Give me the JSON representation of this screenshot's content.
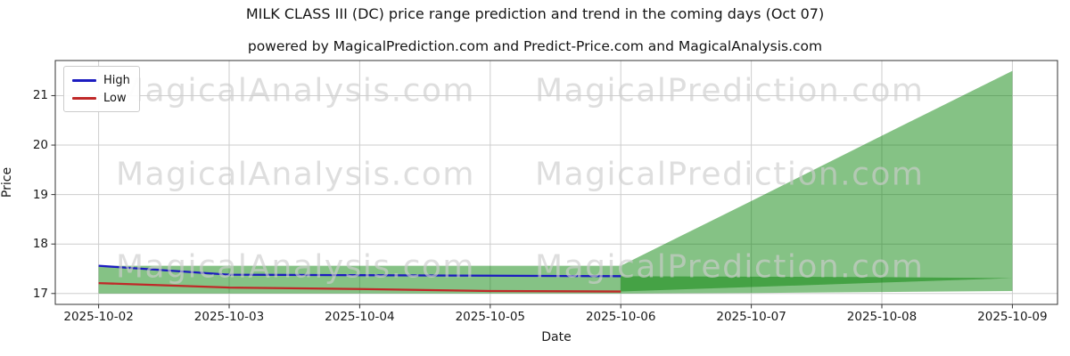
{
  "title": "MILK CLASS III (DC) price range prediction and trend in the coming days (Oct 07)",
  "subtitle": "powered by MagicalPrediction.com and Predict-Price.com and MagicalAnalysis.com",
  "watermarks": {
    "analysis": "MagicalAnalysis.com",
    "prediction": "MagicalPrediction.com"
  },
  "legend": [
    {
      "label": "High",
      "color": "#1c1cc0"
    },
    {
      "label": "Low",
      "color": "#c02828"
    }
  ],
  "axes": {
    "x_label": "Date",
    "y_label": "Price",
    "x_ticks": [
      "2025-10-02",
      "2025-10-03",
      "2025-10-04",
      "2025-10-05",
      "2025-10-06",
      "2025-10-07",
      "2025-10-08",
      "2025-10-09"
    ],
    "y_ticks": [
      "17",
      "18",
      "19",
      "20",
      "21"
    ]
  },
  "chart_data": {
    "type": "line",
    "title": "MILK CLASS III (DC) price range prediction and trend in the coming days (Oct 07)",
    "xlabel": "Date",
    "ylabel": "Price",
    "x": [
      "2025-10-02",
      "2025-10-03",
      "2025-10-04",
      "2025-10-05",
      "2025-10-06",
      "2025-10-07",
      "2025-10-08",
      "2025-10-09"
    ],
    "y_ticks": [
      17,
      18,
      19,
      20,
      21
    ],
    "ylim": [
      16.78,
      21.71
    ],
    "grid": true,
    "legend_position": "upper left",
    "series": [
      {
        "name": "High",
        "color": "#1c1cc0",
        "x_idx": [
          0,
          1,
          2,
          3,
          4
        ],
        "values": [
          17.56,
          17.38,
          17.37,
          17.36,
          17.35
        ]
      },
      {
        "name": "Low",
        "color": "#c02828",
        "x_idx": [
          0,
          1,
          2,
          3,
          4
        ],
        "values": [
          17.21,
          17.12,
          17.09,
          17.05,
          17.04
        ]
      }
    ],
    "bands": [
      {
        "name": "historical-range",
        "x_idx": [
          0,
          4
        ],
        "upper": [
          17.56,
          17.56
        ],
        "lower": [
          17.0,
          17.0
        ]
      },
      {
        "name": "forecast-trend-range",
        "x_idx": [
          4,
          5,
          6,
          7
        ],
        "upper": [
          17.56,
          18.87,
          20.19,
          21.5
        ],
        "lower": [
          17.0,
          17.01,
          17.03,
          17.05
        ]
      },
      {
        "name": "forecast-highlow-range",
        "x_idx": [
          4,
          5,
          6,
          7
        ],
        "upper": [
          17.35,
          17.34,
          17.33,
          17.31
        ],
        "lower": [
          17.04,
          17.13,
          17.22,
          17.31
        ]
      }
    ],
    "band_color": "#008000",
    "band_opacity": 0.48,
    "grid_color": "#cdcdcd",
    "spine_color": "#333333"
  }
}
